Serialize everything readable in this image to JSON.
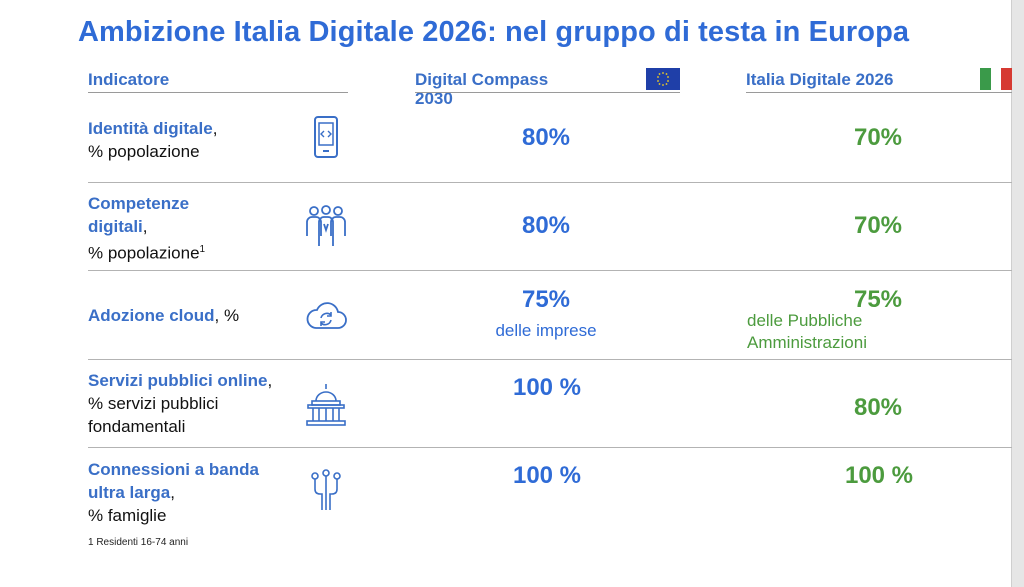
{
  "title": "Ambizione Italia Digitale 2026: nel gruppo di testa in Europa",
  "headers": {
    "indicator": "Indicatore",
    "compass": "Digital Compass 2030",
    "italia": "Italia Digitale 2026"
  },
  "colors": {
    "blue": "#2f6bd6",
    "green": "#4c9b3e",
    "eu_flag": "#1f3fa8",
    "it_green": "#3a9a4a",
    "it_red": "#d63a32"
  },
  "rows": [
    {
      "indicator_bold": "Identità digitale",
      "indicator_rest": ",",
      "indicator_line2": "% popolazione",
      "icon": "smartphone-icon",
      "compass": "80%",
      "italia": "70%"
    },
    {
      "indicator_bold": "Competenze digitali",
      "indicator_rest": ",",
      "indicator_line2": "% popolazione",
      "indicator_sup": "1",
      "icon": "people-group-icon",
      "compass": "80%",
      "italia": "70%"
    },
    {
      "indicator_bold": "Adozione cloud",
      "indicator_rest": ", %",
      "icon": "cloud-sync-icon",
      "compass": "75%",
      "compass_sub": "delle imprese",
      "italia": "75%",
      "italia_sub": "delle Pubbliche Amministrazioni"
    },
    {
      "indicator_bold": "Servizi pubblici online",
      "indicator_rest": ", % servizi pubblici fondamentali",
      "icon": "government-building-icon",
      "compass": "100 %",
      "italia": "80%"
    },
    {
      "indicator_bold": "Connessioni a banda ultra larga",
      "indicator_rest": ",",
      "indicator_line2": "% famiglie",
      "icon": "network-connection-icon",
      "compass": "100 %",
      "italia": "100 %"
    }
  ],
  "footnote": "1 Residenti 16-74 anni"
}
